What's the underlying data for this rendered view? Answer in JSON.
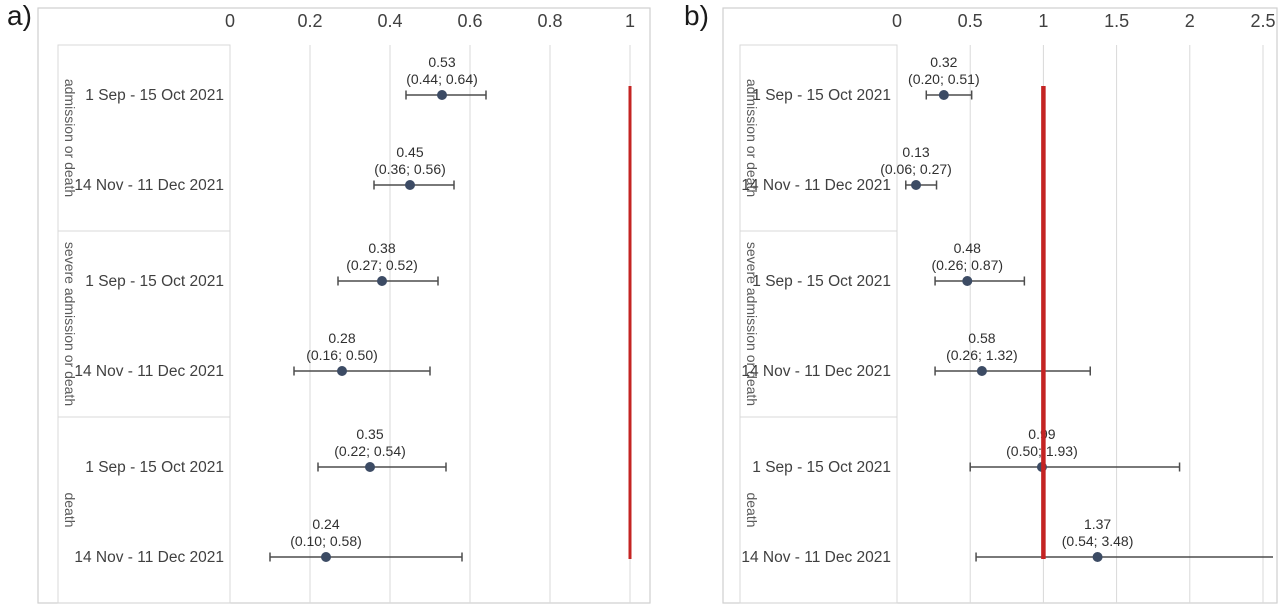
{
  "figure": {
    "description": "Two-panel forest plot of effect estimates with 95% confidence intervals"
  },
  "colors": {
    "frame": "#cfcfcf",
    "grid": "#d9d9d9",
    "box_border": "#d9d9d9",
    "axis_text": "#404040",
    "period_text": "#404040",
    "group_text": "#595959",
    "value_text": "#303030",
    "marker": "#3c4b64",
    "error_bar": "#4d4d4d",
    "reference_line": "#c42423"
  },
  "chart_data": [
    {
      "type": "scatter",
      "subtype": "forest",
      "panel_label": "a)",
      "x_axis": {
        "position": "top",
        "min": 0,
        "max": 1.05,
        "tick_values": [
          0,
          0.2,
          0.4,
          0.6,
          0.8,
          1
        ],
        "tick_labels": [
          "0",
          "0.2",
          "0.4",
          "0.6",
          "0.8",
          "1"
        ],
        "grid": true
      },
      "reference_line_x": 1,
      "groups": [
        {
          "label": "admission or death",
          "rows": [
            {
              "period": "1 Sep - 15 Oct 2021",
              "estimate": 0.53,
              "ci_lower": 0.44,
              "ci_upper": 0.64,
              "estimate_label": "0.53",
              "ci_label": "(0.44; 0.64)"
            },
            {
              "period": "14 Nov - 11 Dec 2021",
              "estimate": 0.45,
              "ci_lower": 0.36,
              "ci_upper": 0.56,
              "estimate_label": "0.45",
              "ci_label": "(0.36; 0.56)"
            }
          ]
        },
        {
          "label": "severe admission or death",
          "rows": [
            {
              "period": "1 Sep - 15 Oct 2021",
              "estimate": 0.38,
              "ci_lower": 0.27,
              "ci_upper": 0.52,
              "estimate_label": "0.38",
              "ci_label": "(0.27; 0.52)"
            },
            {
              "period": "14 Nov - 11 Dec 2021",
              "estimate": 0.28,
              "ci_lower": 0.16,
              "ci_upper": 0.5,
              "estimate_label": "0.28",
              "ci_label": "(0.16; 0.50)"
            }
          ]
        },
        {
          "label": "death",
          "rows": [
            {
              "period": "1 Sep - 15 Oct 2021",
              "estimate": 0.35,
              "ci_lower": 0.22,
              "ci_upper": 0.54,
              "estimate_label": "0.35",
              "ci_label": "(0.22; 0.54)"
            },
            {
              "period": "14 Nov - 11 Dec 2021",
              "estimate": 0.24,
              "ci_lower": 0.1,
              "ci_upper": 0.58,
              "estimate_label": "0.24",
              "ci_label": "(0.10; 0.58)"
            }
          ]
        }
      ]
    },
    {
      "type": "scatter",
      "subtype": "forest",
      "panel_label": "b)",
      "x_axis": {
        "position": "top",
        "min": 0,
        "max": 2.6,
        "tick_values": [
          0,
          0.5,
          1,
          1.5,
          2,
          2.5
        ],
        "tick_labels": [
          "0",
          "0.5",
          "1",
          "1.5",
          "2",
          "2.5"
        ],
        "grid": true
      },
      "reference_line_x": 1,
      "groups": [
        {
          "label": "admission or death",
          "rows": [
            {
              "period": "1 Sep - 15 Oct 2021",
              "estimate": 0.32,
              "ci_lower": 0.2,
              "ci_upper": 0.51,
              "estimate_label": "0.32",
              "ci_label": "(0.20; 0.51)"
            },
            {
              "period": "14 Nov - 11 Dec 2021",
              "estimate": 0.13,
              "ci_lower": 0.06,
              "ci_upper": 0.27,
              "estimate_label": "0.13",
              "ci_label": "(0.06; 0.27)"
            }
          ]
        },
        {
          "label": "severe admission or death",
          "rows": [
            {
              "period": "1 Sep - 15 Oct 2021",
              "estimate": 0.48,
              "ci_lower": 0.26,
              "ci_upper": 0.87,
              "estimate_label": "0.48",
              "ci_label": "(0.26; 0.87)"
            },
            {
              "period": "14 Nov - 11 Dec 2021",
              "estimate": 0.58,
              "ci_lower": 0.26,
              "ci_upper": 1.32,
              "estimate_label": "0.58",
              "ci_label": "(0.26; 1.32)"
            }
          ]
        },
        {
          "label": "death",
          "rows": [
            {
              "period": "1 Sep - 15 Oct 2021",
              "estimate": 0.99,
              "ci_lower": 0.5,
              "ci_upper": 1.93,
              "estimate_label": "0.99",
              "ci_label": "(0.50; 1.93)"
            },
            {
              "period": "14 Nov - 11 Dec 2021",
              "estimate": 1.37,
              "ci_lower": 0.54,
              "ci_upper": 3.48,
              "estimate_label": "1.37",
              "ci_label": "(0.54; 3.48)"
            }
          ]
        }
      ]
    }
  ]
}
